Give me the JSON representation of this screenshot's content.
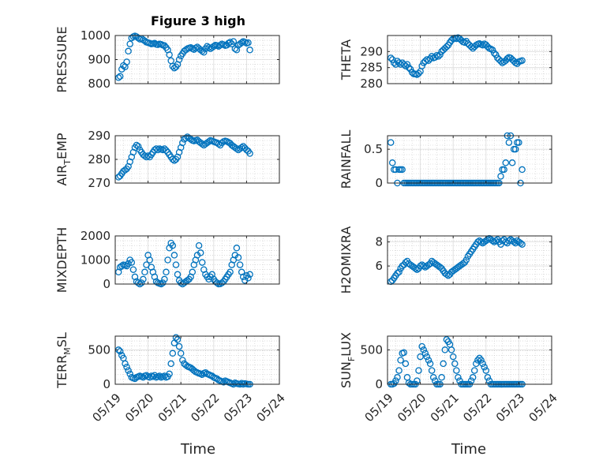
{
  "figure": {
    "title": "Figure 3 high",
    "xlabel": "Time",
    "x_ticks": [
      "05/19",
      "05/20",
      "05/21",
      "05/22",
      "05/23",
      "05/24"
    ],
    "marker_color": "#0072BD"
  },
  "chart_data": [
    {
      "type": "scatter",
      "title": "Figure 3 high",
      "ylabel": "PRESSURE",
      "xlim": [
        0,
        5
      ],
      "ylim": [
        800,
        1000
      ],
      "yticks": [
        800,
        900,
        1000
      ],
      "xlabel": "",
      "x": [
        0.1,
        0.15,
        0.2,
        0.25,
        0.3,
        0.35,
        0.4,
        0.45,
        0.5,
        0.55,
        0.6,
        0.65,
        0.7,
        0.75,
        0.8,
        0.85,
        0.9,
        0.95,
        1.0,
        1.05,
        1.1,
        1.15,
        1.2,
        1.25,
        1.3,
        1.35,
        1.4,
        1.45,
        1.5,
        1.55,
        1.6,
        1.65,
        1.7,
        1.75,
        1.8,
        1.85,
        1.9,
        1.95,
        2.0,
        2.05,
        2.1,
        2.15,
        2.2,
        2.25,
        2.3,
        2.35,
        2.4,
        2.45,
        2.5,
        2.55,
        2.6,
        2.65,
        2.7,
        2.75,
        2.8,
        2.85,
        2.9,
        2.95,
        3.0,
        3.05,
        3.1,
        3.15,
        3.2,
        3.25,
        3.3,
        3.35,
        3.4,
        3.45,
        3.5,
        3.55,
        3.6,
        3.65,
        3.7,
        3.75,
        3.8,
        3.85,
        3.9,
        3.95,
        4.0,
        4.05,
        4.1
      ],
      "y": [
        825,
        830,
        860,
        875,
        870,
        890,
        935,
        965,
        990,
        995,
        998,
        995,
        990,
        985,
        988,
        982,
        978,
        972,
        970,
        968,
        965,
        966,
        968,
        963,
        962,
        965,
        963,
        960,
        958,
        950,
        940,
        920,
        895,
        872,
        865,
        870,
        880,
        900,
        915,
        925,
        935,
        940,
        945,
        948,
        950,
        945,
        942,
        948,
        952,
        946,
        940,
        935,
        930,
        945,
        955,
        950,
        945,
        950,
        955,
        960,
        958,
        955,
        960,
        965,
        962,
        958,
        960,
        968,
        972,
        965,
        975,
        945,
        940,
        960,
        965,
        970,
        975,
        972,
        968,
        970,
        940
      ]
    },
    {
      "type": "scatter",
      "ylabel": "THETA",
      "xlim": [
        0,
        5
      ],
      "ylim": [
        280,
        295
      ],
      "yticks": [
        280,
        285,
        290
      ],
      "xlabel": "",
      "x": [
        0.1,
        0.15,
        0.2,
        0.25,
        0.3,
        0.35,
        0.4,
        0.45,
        0.5,
        0.55,
        0.6,
        0.65,
        0.7,
        0.75,
        0.8,
        0.85,
        0.9,
        0.95,
        1.0,
        1.05,
        1.1,
        1.15,
        1.2,
        1.25,
        1.3,
        1.35,
        1.4,
        1.45,
        1.5,
        1.55,
        1.6,
        1.65,
        1.7,
        1.75,
        1.8,
        1.85,
        1.9,
        1.95,
        2.0,
        2.05,
        2.1,
        2.15,
        2.2,
        2.25,
        2.3,
        2.35,
        2.4,
        2.45,
        2.5,
        2.55,
        2.6,
        2.65,
        2.7,
        2.75,
        2.8,
        2.85,
        2.9,
        2.95,
        3.0,
        3.05,
        3.1,
        3.15,
        3.2,
        3.25,
        3.3,
        3.35,
        3.4,
        3.45,
        3.5,
        3.55,
        3.6,
        3.65,
        3.7,
        3.75,
        3.8,
        3.85,
        3.9,
        3.95,
        4.0,
        4.05,
        4.1
      ],
      "y": [
        288,
        287.5,
        286.5,
        286,
        287,
        286.5,
        286,
        286.5,
        286,
        285.5,
        286,
        285,
        284.5,
        283.5,
        283,
        283,
        282.8,
        283.2,
        283.8,
        285.5,
        286.5,
        287,
        287.5,
        287.2,
        287.8,
        288.5,
        288,
        288.2,
        288.8,
        288.5,
        289,
        290,
        290.5,
        291,
        291.5,
        292,
        292.8,
        293.5,
        294,
        294.2,
        294,
        294.3,
        294,
        293.5,
        293,
        292.8,
        293.2,
        292.5,
        292,
        291.5,
        291,
        291.5,
        292,
        292.3,
        292.5,
        292.2,
        292,
        292.4,
        292.1,
        291.5,
        291,
        290.8,
        290.5,
        289.5,
        289,
        288,
        287.5,
        287,
        286.5,
        286.8,
        287.2,
        287.8,
        288.2,
        288,
        287.5,
        287,
        286.5,
        286.2,
        286.8,
        287,
        287.2
      ]
    },
    {
      "type": "scatter",
      "ylabel": "AIR_TEMP",
      "xlim": [
        0,
        5
      ],
      "ylim": [
        270,
        290
      ],
      "yticks": [
        270,
        280,
        290
      ],
      "xlabel": "",
      "x": [
        0.1,
        0.15,
        0.2,
        0.25,
        0.3,
        0.35,
        0.4,
        0.45,
        0.5,
        0.55,
        0.6,
        0.65,
        0.7,
        0.75,
        0.8,
        0.85,
        0.9,
        0.95,
        1.0,
        1.05,
        1.1,
        1.15,
        1.2,
        1.25,
        1.3,
        1.35,
        1.4,
        1.45,
        1.5,
        1.55,
        1.6,
        1.65,
        1.7,
        1.75,
        1.8,
        1.85,
        1.9,
        1.95,
        2.0,
        2.05,
        2.1,
        2.15,
        2.2,
        2.25,
        2.3,
        2.35,
        2.4,
        2.45,
        2.5,
        2.55,
        2.6,
        2.65,
        2.7,
        2.75,
        2.8,
        2.85,
        2.9,
        2.95,
        3.0,
        3.05,
        3.1,
        3.15,
        3.2,
        3.25,
        3.3,
        3.35,
        3.4,
        3.45,
        3.5,
        3.55,
        3.6,
        3.65,
        3.7,
        3.75,
        3.8,
        3.85,
        3.9,
        3.95,
        4.0,
        4.05,
        4.1
      ],
      "y": [
        272.5,
        273,
        274,
        275,
        275.5,
        276,
        277,
        279,
        281,
        283,
        285,
        286,
        285.5,
        284,
        283,
        282,
        281.5,
        281,
        281.5,
        281,
        282,
        283,
        284,
        284.5,
        284,
        284.5,
        284.2,
        284,
        284.5,
        283.8,
        283,
        282,
        281,
        280,
        279.5,
        280,
        281,
        283,
        285,
        287,
        288.5,
        289,
        289.5,
        289,
        288.5,
        288,
        287.8,
        288,
        288.2,
        287.5,
        287,
        286.5,
        286,
        286.5,
        287,
        287.5,
        288,
        287.8,
        287.5,
        287.2,
        287,
        286.5,
        286,
        287,
        287.5,
        287.8,
        287.6,
        287.2,
        286.8,
        286,
        285.5,
        285,
        284.5,
        284,
        284.5,
        285,
        285.5,
        284.8,
        284,
        283.5,
        282.5
      ]
    },
    {
      "type": "scatter",
      "ylabel": "RAINFALL",
      "xlim": [
        0,
        5
      ],
      "ylim": [
        0,
        0.7
      ],
      "yticks": [
        0,
        0.5
      ],
      "xlabel": "",
      "x": [
        0.1,
        0.15,
        0.2,
        0.25,
        0.3,
        0.35,
        0.4,
        0.45,
        0.5,
        0.55,
        0.6,
        0.65,
        0.7,
        0.75,
        0.8,
        0.85,
        0.9,
        0.95,
        1.0,
        1.05,
        1.1,
        1.15,
        1.2,
        1.25,
        1.3,
        1.35,
        1.4,
        1.45,
        1.5,
        1.55,
        1.6,
        1.65,
        1.7,
        1.75,
        1.8,
        1.85,
        1.9,
        1.95,
        2.0,
        2.05,
        2.1,
        2.15,
        2.2,
        2.25,
        2.3,
        2.35,
        2.4,
        2.45,
        2.5,
        2.55,
        2.6,
        2.65,
        2.7,
        2.75,
        2.8,
        2.85,
        2.9,
        2.95,
        3.0,
        3.05,
        3.1,
        3.15,
        3.2,
        3.25,
        3.3,
        3.35,
        3.4,
        3.45,
        3.5,
        3.55,
        3.6,
        3.65,
        3.7,
        3.75,
        3.8,
        3.85,
        3.9,
        3.95,
        4.0,
        4.05,
        4.1
      ],
      "y": [
        0.6,
        0.3,
        0.2,
        0.2,
        0,
        0.2,
        0.2,
        0.2,
        0,
        0,
        0,
        0,
        0,
        0,
        0,
        0,
        0,
        0,
        0,
        0,
        0,
        0,
        0,
        0,
        0,
        0,
        0,
        0,
        0,
        0,
        0,
        0,
        0,
        0,
        0,
        0,
        0,
        0,
        0,
        0,
        0,
        0,
        0,
        0,
        0,
        0,
        0,
        0,
        0,
        0,
        0,
        0,
        0,
        0,
        0,
        0,
        0,
        0,
        0,
        0,
        0,
        0,
        0,
        0,
        0,
        0,
        0,
        0.1,
        0.2,
        0.2,
        0.3,
        0.7,
        0.6,
        0.7,
        0.3,
        0.5,
        0.5,
        0.6,
        0.6,
        0,
        0.2
      ]
    },
    {
      "type": "scatter",
      "ylabel": "MIXDEPTH",
      "xlim": [
        0,
        5
      ],
      "ylim": [
        0,
        2000
      ],
      "yticks": [
        0,
        1000,
        2000
      ],
      "xlabel": "",
      "x": [
        0.1,
        0.15,
        0.2,
        0.25,
        0.3,
        0.35,
        0.4,
        0.45,
        0.5,
        0.55,
        0.6,
        0.65,
        0.7,
        0.75,
        0.8,
        0.85,
        0.9,
        0.95,
        1.0,
        1.05,
        1.1,
        1.15,
        1.2,
        1.25,
        1.3,
        1.35,
        1.4,
        1.45,
        1.5,
        1.55,
        1.6,
        1.65,
        1.7,
        1.75,
        1.8,
        1.85,
        1.9,
        1.95,
        2.0,
        2.05,
        2.1,
        2.15,
        2.2,
        2.25,
        2.3,
        2.35,
        2.4,
        2.45,
        2.5,
        2.55,
        2.6,
        2.65,
        2.7,
        2.75,
        2.8,
        2.85,
        2.9,
        2.95,
        3.0,
        3.05,
        3.1,
        3.15,
        3.2,
        3.25,
        3.3,
        3.35,
        3.4,
        3.45,
        3.5,
        3.55,
        3.6,
        3.65,
        3.7,
        3.75,
        3.8,
        3.85,
        3.9,
        3.95,
        4.0,
        4.05,
        4.1
      ],
      "y": [
        500,
        700,
        750,
        800,
        780,
        750,
        850,
        1000,
        900,
        600,
        300,
        100,
        50,
        0,
        50,
        200,
        500,
        800,
        1200,
        1000,
        700,
        500,
        300,
        100,
        50,
        20,
        0,
        50,
        200,
        500,
        1000,
        1500,
        1700,
        1600,
        1200,
        800,
        400,
        150,
        50,
        0,
        50,
        100,
        150,
        200,
        300,
        500,
        800,
        1000,
        1200,
        1600,
        1300,
        900,
        600,
        400,
        300,
        200,
        300,
        400,
        200,
        100,
        50,
        0,
        10,
        50,
        100,
        200,
        300,
        400,
        500,
        800,
        1000,
        1200,
        1500,
        1100,
        800,
        500,
        300,
        150,
        350,
        250,
        400
      ]
    },
    {
      "type": "scatter",
      "ylabel": "H2OMIXRA",
      "xlim": [
        0,
        5
      ],
      "ylim": [
        4.5,
        8.5
      ],
      "yticks": [
        6,
        8
      ],
      "xlabel": "",
      "x": [
        0.1,
        0.15,
        0.2,
        0.25,
        0.3,
        0.35,
        0.4,
        0.45,
        0.5,
        0.55,
        0.6,
        0.65,
        0.7,
        0.75,
        0.8,
        0.85,
        0.9,
        0.95,
        1.0,
        1.05,
        1.1,
        1.15,
        1.2,
        1.25,
        1.3,
        1.35,
        1.4,
        1.45,
        1.5,
        1.55,
        1.6,
        1.65,
        1.7,
        1.75,
        1.8,
        1.85,
        1.9,
        1.95,
        2.0,
        2.05,
        2.1,
        2.15,
        2.2,
        2.25,
        2.3,
        2.35,
        2.4,
        2.45,
        2.5,
        2.55,
        2.6,
        2.65,
        2.7,
        2.75,
        2.8,
        2.85,
        2.9,
        2.95,
        3.0,
        3.05,
        3.1,
        3.15,
        3.2,
        3.25,
        3.3,
        3.35,
        3.4,
        3.45,
        3.5,
        3.55,
        3.6,
        3.65,
        3.7,
        3.75,
        3.8,
        3.85,
        3.9,
        3.95,
        4.0,
        4.05,
        4.1
      ],
      "y": [
        4.7,
        4.8,
        5.0,
        5.2,
        5.4,
        5.5,
        5.8,
        6.0,
        6.1,
        6.3,
        6.4,
        6.2,
        6.1,
        6.0,
        5.9,
        5.8,
        5.7,
        5.8,
        6.0,
        6.1,
        6.0,
        5.9,
        6.0,
        6.1,
        6.2,
        6.4,
        6.3,
        6.2,
        6.1,
        6.0,
        5.9,
        5.8,
        5.6,
        5.4,
        5.3,
        5.2,
        5.3,
        5.5,
        5.6,
        5.7,
        5.8,
        5.9,
        6.0,
        6.1,
        6.2,
        6.3,
        6.5,
        6.8,
        7.0,
        7.2,
        7.4,
        7.6,
        7.8,
        8.0,
        8.1,
        8.0,
        7.9,
        8.0,
        8.1,
        8.2,
        8.3,
        8.2,
        8.1,
        8.0,
        8.1,
        8.2,
        8.0,
        7.8,
        8.1,
        8.2,
        8.0,
        7.9,
        8.1,
        8.2,
        8.1,
        8.0,
        7.9,
        8.1,
        8.0,
        7.9,
        7.8
      ]
    },
    {
      "type": "scatter",
      "ylabel": "TERR_MSL",
      "xlim": [
        0,
        5
      ],
      "ylim": [
        0,
        700
      ],
      "yticks": [
        0,
        500
      ],
      "xlabel": "Time",
      "xticks": [
        "05/19",
        "05/20",
        "05/21",
        "05/22",
        "05/23",
        "05/24"
      ],
      "x": [
        0.1,
        0.15,
        0.2,
        0.25,
        0.3,
        0.35,
        0.4,
        0.45,
        0.5,
        0.55,
        0.6,
        0.65,
        0.7,
        0.75,
        0.8,
        0.85,
        0.9,
        0.95,
        1.0,
        1.05,
        1.1,
        1.15,
        1.2,
        1.25,
        1.3,
        1.35,
        1.4,
        1.45,
        1.5,
        1.55,
        1.6,
        1.65,
        1.7,
        1.75,
        1.8,
        1.85,
        1.9,
        1.95,
        2.0,
        2.05,
        2.1,
        2.15,
        2.2,
        2.25,
        2.3,
        2.35,
        2.4,
        2.45,
        2.5,
        2.55,
        2.6,
        2.65,
        2.7,
        2.75,
        2.8,
        2.85,
        2.9,
        2.95,
        3.0,
        3.05,
        3.1,
        3.15,
        3.2,
        3.25,
        3.3,
        3.35,
        3.4,
        3.45,
        3.5,
        3.55,
        3.6,
        3.65,
        3.7,
        3.75,
        3.8,
        3.85,
        3.9,
        3.95,
        4.0,
        4.05,
        4.1
      ],
      "y": [
        500,
        480,
        420,
        380,
        300,
        250,
        200,
        150,
        100,
        90,
        80,
        100,
        110,
        120,
        110,
        100,
        120,
        130,
        110,
        100,
        120,
        110,
        130,
        100,
        110,
        120,
        100,
        110,
        120,
        100,
        110,
        150,
        300,
        450,
        600,
        680,
        650,
        550,
        450,
        350,
        300,
        280,
        260,
        250,
        240,
        220,
        200,
        180,
        170,
        160,
        150,
        140,
        160,
        170,
        150,
        140,
        130,
        120,
        100,
        90,
        80,
        60,
        50,
        40,
        30,
        50,
        40,
        30,
        20,
        10,
        0,
        20,
        10,
        5,
        0,
        15,
        0,
        10,
        5,
        0,
        0
      ]
    },
    {
      "type": "scatter",
      "ylabel": "SUN_FLUX",
      "xlim": [
        0,
        5
      ],
      "ylim": [
        0,
        700
      ],
      "yticks": [
        0,
        500
      ],
      "xlabel": "Time",
      "xticks": [
        "05/19",
        "05/20",
        "05/21",
        "05/22",
        "05/23",
        "05/24"
      ],
      "x": [
        0.1,
        0.15,
        0.2,
        0.25,
        0.3,
        0.35,
        0.4,
        0.45,
        0.5,
        0.55,
        0.6,
        0.65,
        0.7,
        0.75,
        0.8,
        0.85,
        0.9,
        0.95,
        1.0,
        1.05,
        1.1,
        1.15,
        1.2,
        1.25,
        1.3,
        1.35,
        1.4,
        1.45,
        1.5,
        1.55,
        1.6,
        1.65,
        1.7,
        1.75,
        1.8,
        1.85,
        1.9,
        1.95,
        2.0,
        2.05,
        2.1,
        2.15,
        2.2,
        2.25,
        2.3,
        2.35,
        2.4,
        2.45,
        2.5,
        2.55,
        2.6,
        2.65,
        2.7,
        2.75,
        2.8,
        2.85,
        2.9,
        2.95,
        3.0,
        3.05,
        3.1,
        3.15,
        3.2,
        3.25,
        3.3,
        3.35,
        3.4,
        3.45,
        3.5,
        3.55,
        3.6,
        3.65,
        3.7,
        3.75,
        3.8,
        3.85,
        3.9,
        3.95,
        4.0,
        4.05,
        4.1
      ],
      "y": [
        0,
        0,
        10,
        50,
        100,
        200,
        350,
        450,
        460,
        300,
        100,
        20,
        0,
        0,
        0,
        0,
        50,
        200,
        400,
        550,
        500,
        450,
        400,
        350,
        300,
        200,
        100,
        50,
        0,
        0,
        0,
        100,
        300,
        500,
        650,
        620,
        580,
        500,
        400,
        300,
        200,
        100,
        50,
        0,
        0,
        0,
        0,
        0,
        0,
        50,
        100,
        200,
        300,
        350,
        380,
        350,
        300,
        250,
        200,
        100,
        50,
        0,
        0,
        0,
        0,
        0,
        0,
        0,
        0,
        0,
        0,
        0,
        0,
        0,
        0,
        0,
        0,
        0,
        0,
        0,
        0
      ]
    }
  ]
}
